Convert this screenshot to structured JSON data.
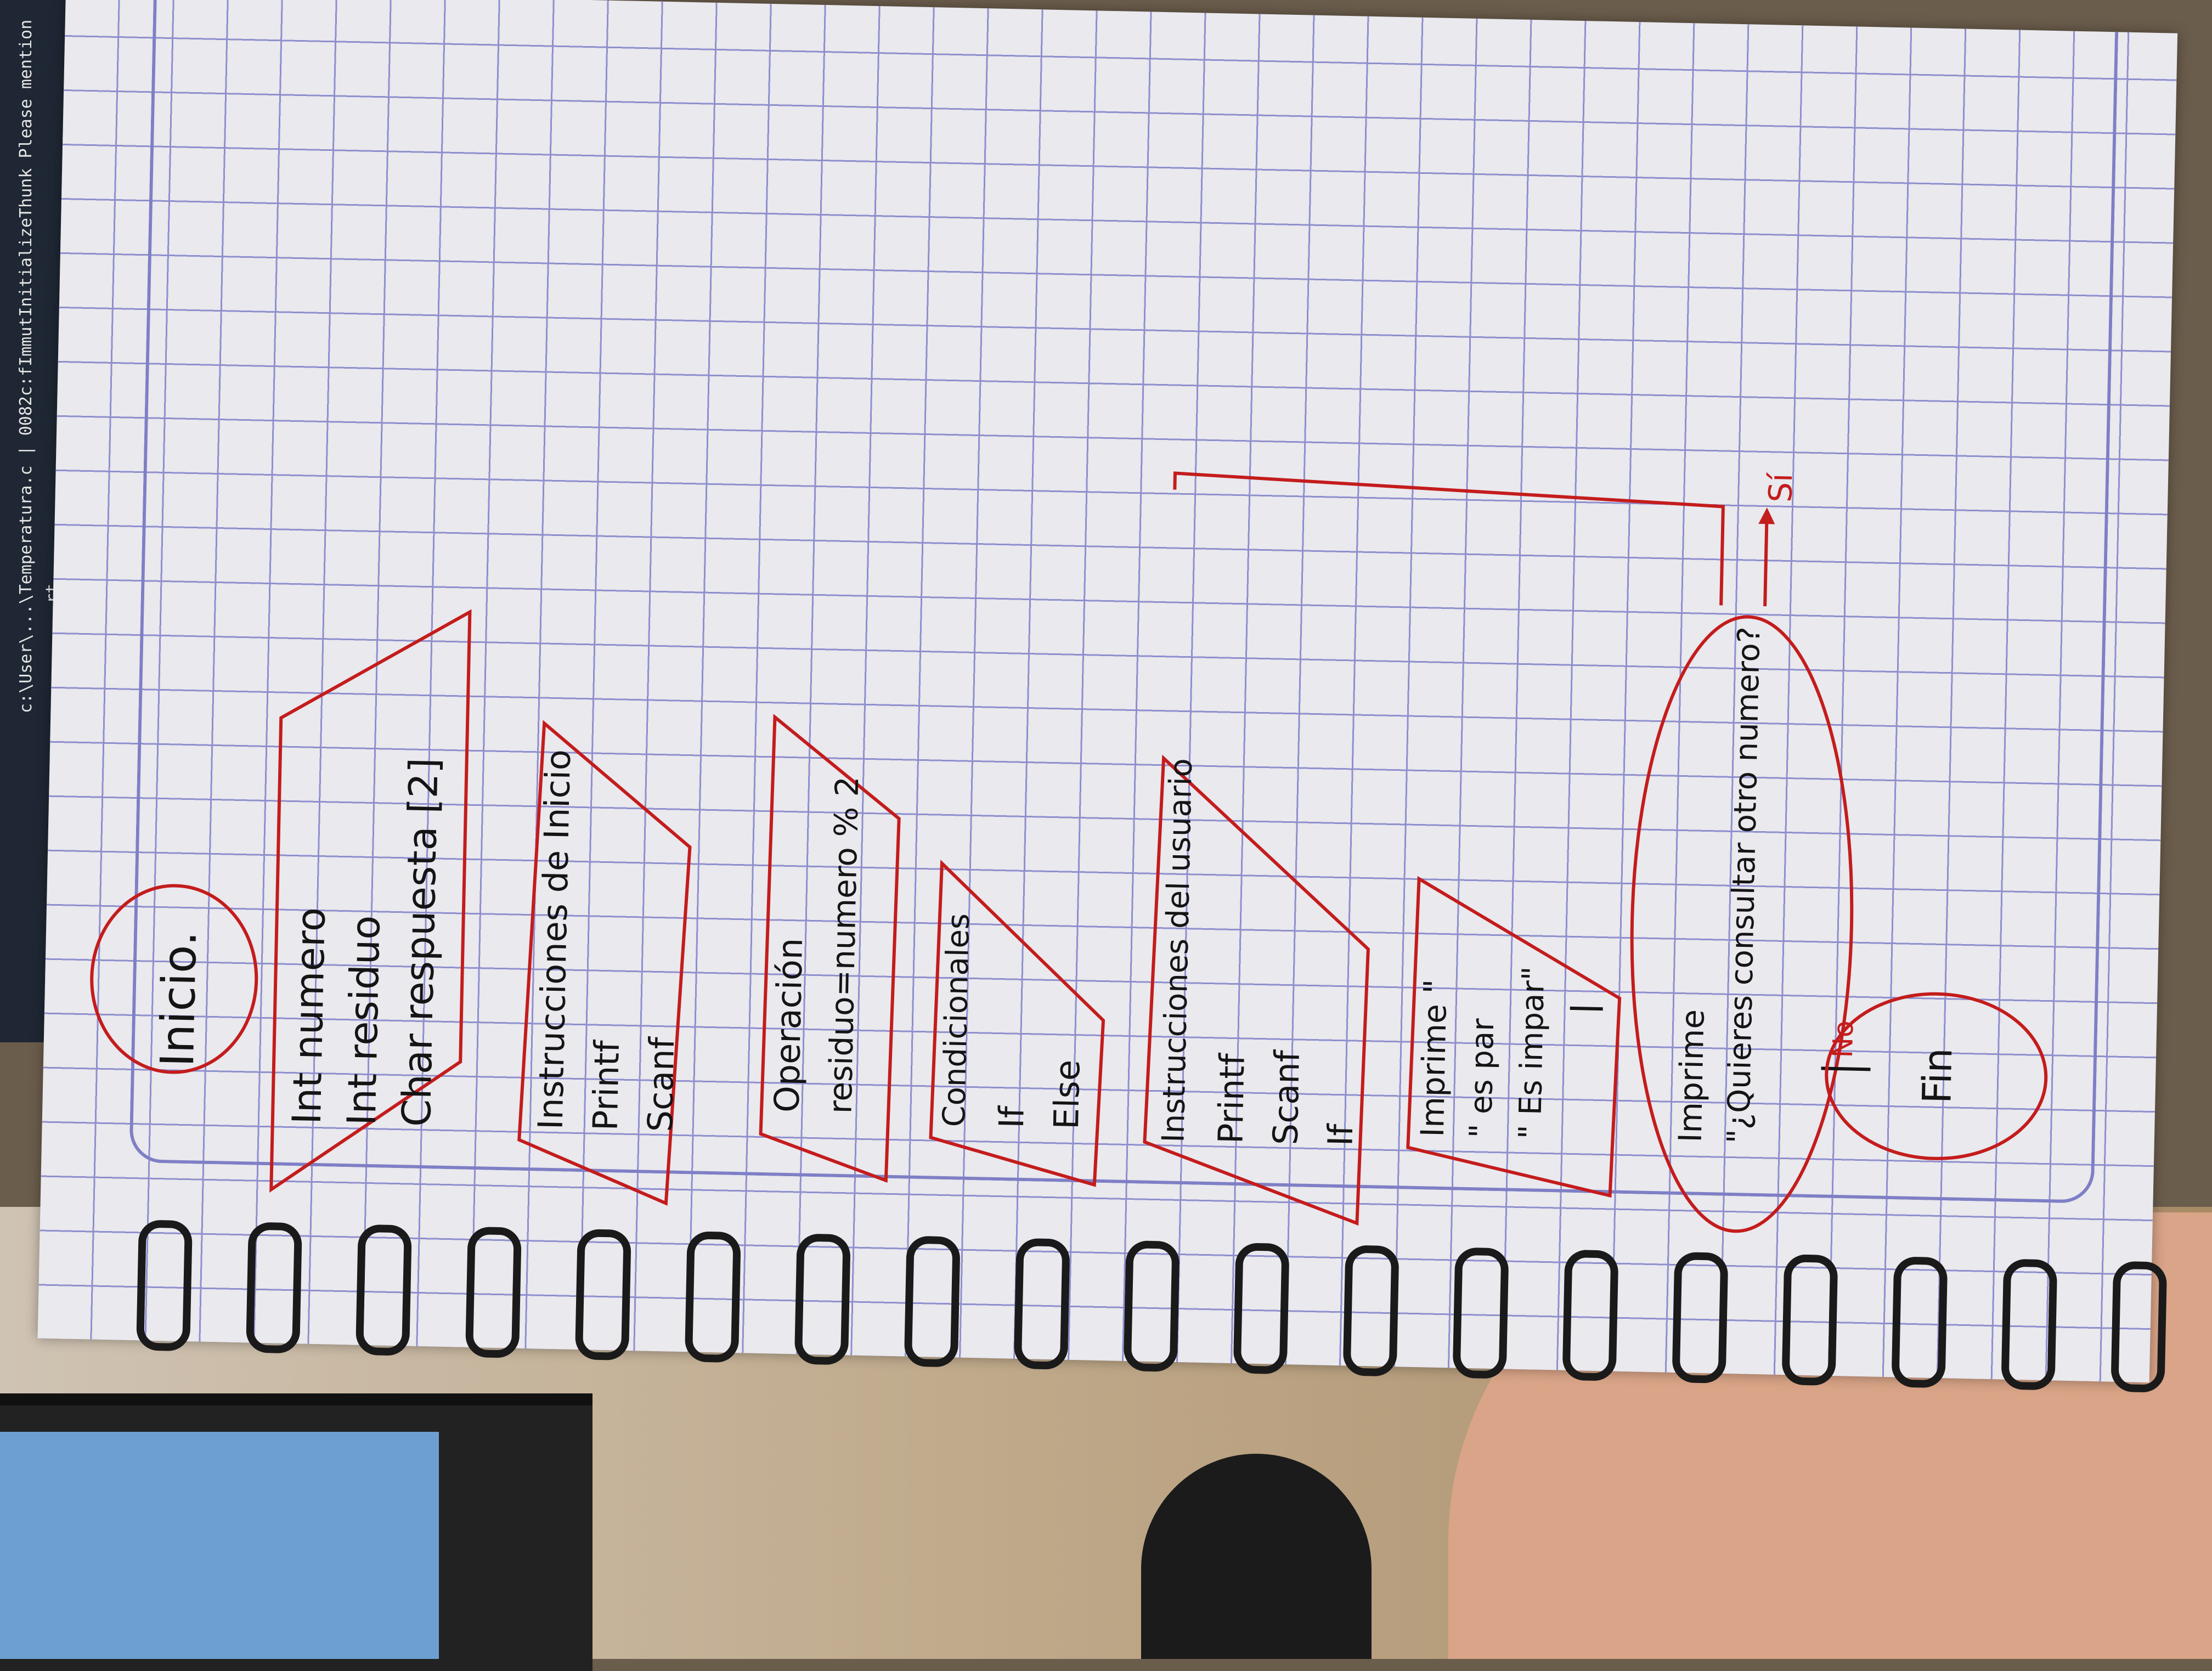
{
  "start": {
    "label": "Inicio."
  },
  "declarations": {
    "lines": [
      "Int numero",
      "Int residuo",
      "Char respuesta [2]"
    ]
  },
  "instructions_start": {
    "lines": [
      "Instrucciones de Inicio",
      "Printf",
      "Scanf"
    ]
  },
  "operation": {
    "lines": [
      "Operación",
      "residuo=numero % 2"
    ]
  },
  "conditionals": {
    "lines": [
      "Condicionales",
      "If",
      "Else"
    ]
  },
  "user_instructions": {
    "lines": [
      "Instrucciones del usuario",
      "Printf",
      "Scanf",
      "If"
    ]
  },
  "print_result": {
    "lines": [
      "Imprime \"",
      "\" es par",
      "\" Es impar\""
    ]
  },
  "print_question": {
    "lines": [
      "Imprime",
      "\"¿Quieres consultar otro numero?"
    ]
  },
  "branch_yes": {
    "label": "Sí"
  },
  "branch_no": {
    "label": "No"
  },
  "end": {
    "label": "Fin"
  },
  "screen_code": {
    "line1": "c:\\User\\...\\Temperatura.c | 0082c:fImmutInitializeThunk Please mention",
    "line2": "rt."
  },
  "colors": {
    "ink_red": "#c41c1c",
    "ink_black": "#141414",
    "grid": "#8f8fce",
    "paper": "#e9e9ee"
  }
}
